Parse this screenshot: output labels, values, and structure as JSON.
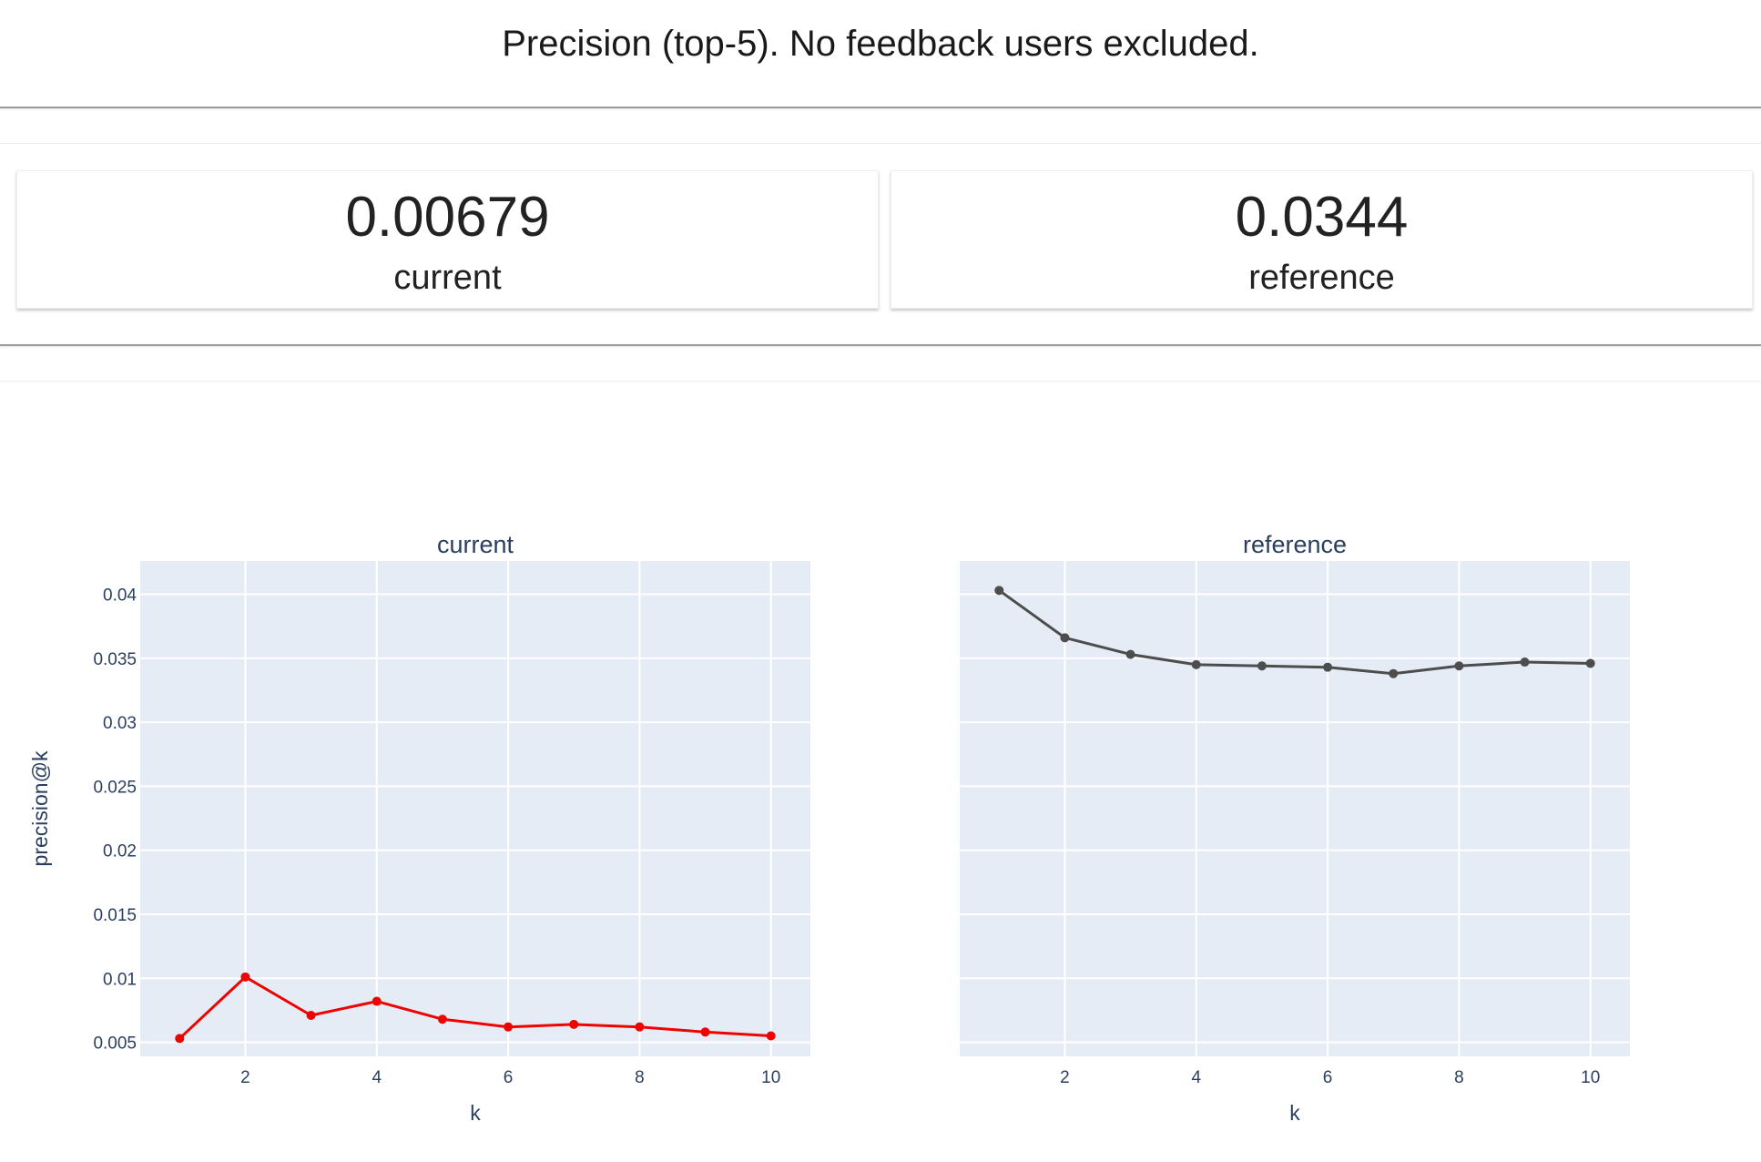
{
  "page": {
    "title": "Precision (top-5). No feedback users excluded."
  },
  "counters": [
    {
      "value": "0.00679",
      "label": "current"
    },
    {
      "value": "0.0344",
      "label": "reference"
    }
  ],
  "colors": {
    "plot_background": "#e5ecf6",
    "grid": "#ffffff",
    "axis_text": "#2a3f5f",
    "current_series": "#ed0400",
    "reference_series": "#4d4d4d"
  },
  "chart_data": [
    {
      "type": "line",
      "title": "current",
      "xlabel": "k",
      "ylabel": "precision@k",
      "x": [
        1,
        2,
        3,
        4,
        5,
        6,
        7,
        8,
        9,
        10
      ],
      "y": [
        0.0053,
        0.0101,
        0.0071,
        0.0082,
        0.0068,
        0.0062,
        0.0064,
        0.0062,
        0.0058,
        0.0055
      ],
      "xlim": [
        0.4,
        10.6
      ],
      "ylim": [
        0.0039,
        0.0426
      ],
      "xticks": [
        2,
        4,
        6,
        8,
        10
      ],
      "yticks": [
        0.005,
        0.01,
        0.015,
        0.02,
        0.025,
        0.03,
        0.035,
        0.04
      ],
      "ytick_labels": [
        "0.005",
        "0.01",
        "0.015",
        "0.02",
        "0.025",
        "0.03",
        "0.035",
        "0.04"
      ],
      "color": "#ed0400",
      "markers": true,
      "grid": true
    },
    {
      "type": "line",
      "title": "reference",
      "xlabel": "k",
      "ylabel": "",
      "x": [
        1,
        2,
        3,
        4,
        5,
        6,
        7,
        8,
        9,
        10
      ],
      "y": [
        0.0403,
        0.0366,
        0.0353,
        0.0345,
        0.0344,
        0.0343,
        0.0338,
        0.0344,
        0.0347,
        0.0346
      ],
      "xlim": [
        0.4,
        10.6
      ],
      "ylim": [
        0.0039,
        0.0426
      ],
      "xticks": [
        2,
        4,
        6,
        8,
        10
      ],
      "yticks": [
        0.005,
        0.01,
        0.015,
        0.02,
        0.025,
        0.03,
        0.035,
        0.04
      ],
      "color": "#4d4d4d",
      "markers": true,
      "grid": true
    }
  ]
}
